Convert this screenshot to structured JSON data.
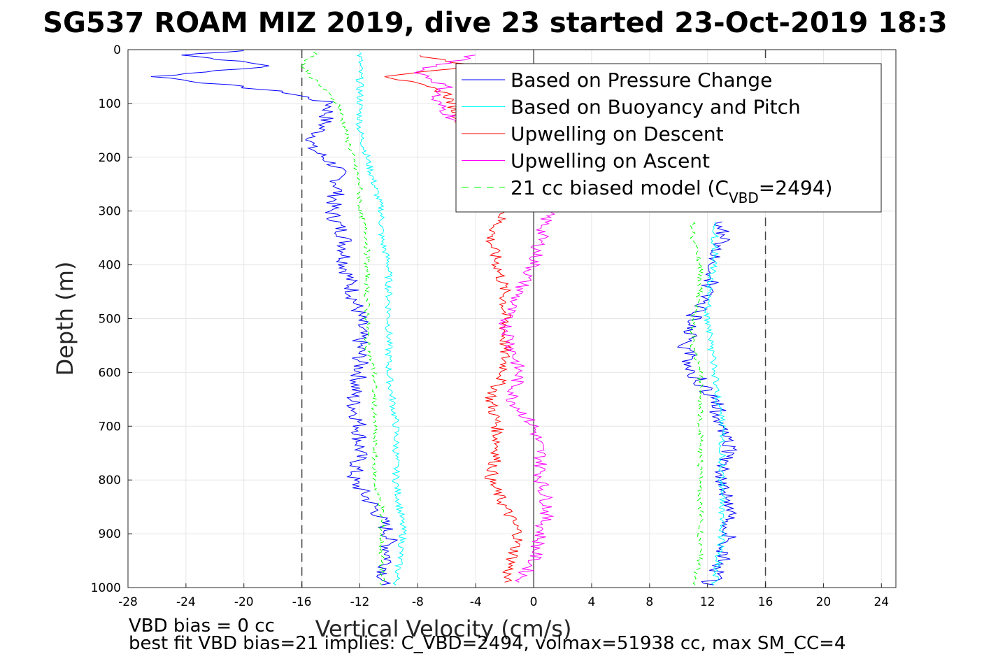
{
  "title": "SG537 ROAM MIZ 2019, dive 23 started 23-Oct-2019 18:3",
  "footer": {
    "line1": "VBD bias = 0 cc",
    "line2": "best fit VBD bias=21 implies: C_VBD=2494, volmax=51938 cc, max SM_CC=4"
  },
  "colors": {
    "pressure": "#0000ff",
    "buoyancy": "#00ffff",
    "upwelling_descent": "#ff0000",
    "upwelling_ascent": "#ff00ff",
    "biased_model": "#00ff00",
    "grid": "#e6e6e6",
    "reference": "#444444"
  },
  "chart_data": {
    "type": "line",
    "title": "SG537 ROAM MIZ 2019, dive 23 started 23-Oct-2019 18:3",
    "xlabel": "Vertical Velocity (cm/s)",
    "ylabel": "Depth (m)",
    "xlim": [
      -28,
      25
    ],
    "ylim": [
      1000,
      0
    ],
    "y_reversed": true,
    "grid": true,
    "x_ticks": [
      -28,
      -24,
      -20,
      -16,
      -12,
      -8,
      -4,
      0,
      4,
      8,
      12,
      16,
      20,
      24
    ],
    "y_ticks": [
      0,
      100,
      200,
      300,
      400,
      500,
      600,
      700,
      800,
      900,
      1000
    ],
    "reference_lines": {
      "dashed_vertical_x": [
        -16,
        16
      ],
      "solid_vertical_x": [
        0
      ]
    },
    "legend": {
      "position": "top-right",
      "entries": [
        {
          "text": "Based on Pressure Change",
          "series": "pressure",
          "style": "solid"
        },
        {
          "text": "Based on Buoyancy and Pitch",
          "series": "buoyancy",
          "style": "solid"
        },
        {
          "text": "Upwelling on Descent",
          "series": "upwelling_descent",
          "style": "solid"
        },
        {
          "text": "Upwelling on Ascent",
          "series": "upwelling_ascent",
          "style": "solid"
        },
        {
          "text": "21 cc biased model (C",
          "sub": "VBD",
          "suffix": "=2494)",
          "series": "biased_model",
          "style": "dashed"
        }
      ]
    },
    "series": [
      {
        "name": "Based on Pressure Change",
        "key": "pressure",
        "segments": [
          {
            "depth": [
              2,
              10,
              30,
              50,
              80,
              100,
              140,
              180,
              220,
              260,
              300,
              350,
              400,
              450,
              500,
              550,
              600,
              650,
              700,
              750,
              800,
              850,
              900,
              950,
              995
            ],
            "velocity": [
              -20,
              -24,
              -18,
              -26,
              -17,
              -14,
              -14.5,
              -15.5,
              -13.5,
              -13.5,
              -14,
              -13,
              -13,
              -12.5,
              -12,
              -12,
              -12,
              -12.5,
              -12,
              -12,
              -12.5,
              -11,
              -10,
              -10,
              -10.5
            ]
          },
          {
            "depth": [
              995,
              980,
              950,
              900,
              850,
              800,
              750,
              700,
              650,
              600,
              550,
              500,
              450,
              400,
              350,
              320
            ],
            "velocity": [
              12,
              12.5,
              13,
              13.5,
              13.5,
              13,
              13.5,
              13,
              12.5,
              11,
              10.5,
              11,
              12,
              12.5,
              13,
              13
            ]
          }
        ]
      },
      {
        "name": "Based on Buoyancy and Pitch",
        "key": "buoyancy",
        "segments": [
          {
            "depth": [
              5,
              20,
              50,
              100,
              150,
              200,
              250,
              300,
              350,
              400,
              450,
              500,
              600,
              700,
              800,
              900,
              995
            ],
            "velocity": [
              -12,
              -12,
              -12,
              -12,
              -12,
              -11.5,
              -11,
              -10.5,
              -10.5,
              -10,
              -10,
              -10,
              -10,
              -9.5,
              -9.5,
              -9,
              -9.5
            ]
          },
          {
            "depth": [
              995,
              900,
              800,
              700,
              600,
              500,
              450,
              400,
              350,
              320
            ],
            "velocity": [
              12.5,
              13,
              13,
              13,
              12.5,
              12,
              12,
              12.5,
              12.5,
              12.5
            ]
          }
        ]
      },
      {
        "name": "Upwelling on Descent",
        "key": "upwelling_descent",
        "segments": [
          {
            "depth": [
              10,
              30,
              50,
              80,
              300,
              350,
              400,
              450,
              500,
              550,
              600,
              650,
              700,
              750,
              800,
              850,
              900,
              950,
              990
            ],
            "velocity": [
              -8,
              -4,
              -10,
              -6,
              -2,
              -3,
              -2.5,
              -2,
              -2,
              -2,
              -2,
              -3,
              -2.5,
              -2.5,
              -3,
              -2,
              -1,
              -1.5,
              -2
            ]
          }
        ]
      },
      {
        "name": "Upwelling on Ascent",
        "key": "upwelling_ascent",
        "segments": [
          {
            "depth": [
              10,
              40,
              70,
              90,
              300,
              350,
              400,
              450,
              500,
              550,
              600,
              650,
              700,
              750,
              800,
              850,
              900,
              950,
              990
            ],
            "velocity": [
              -4,
              -8,
              -6,
              -7,
              1,
              0.5,
              0,
              -1,
              -2,
              -1.5,
              -1,
              -1.5,
              0,
              0.5,
              0.5,
              1,
              0.5,
              0,
              -1
            ]
          }
        ]
      },
      {
        "name": "21 cc biased model (CVBD=2494)",
        "key": "biased_model",
        "segments": [
          {
            "depth": [
              5,
              30,
              60,
              100,
              150,
              200,
              250,
              300,
              350,
              400,
              450,
              500,
              550,
              600,
              650,
              700,
              750,
              800,
              850,
              900,
              950,
              995
            ],
            "velocity": [
              -15,
              -16,
              -15,
              -13.5,
              -13,
              -12.5,
              -12,
              -12,
              -11.5,
              -11.5,
              -11.5,
              -11.5,
              -11.5,
              -11,
              -11,
              -11,
              -11,
              -11,
              -10.5,
              -10.5,
              -10.5,
              -10.5
            ]
          },
          {
            "depth": [
              995,
              950,
              900,
              850,
              800,
              750,
              700,
              650,
              600,
              550,
              500,
              450,
              400,
              350,
              320
            ],
            "velocity": [
              11,
              11.5,
              11.5,
              11.5,
              11.5,
              11.5,
              11.5,
              11.5,
              11.5,
              11,
              11,
              11.5,
              11.5,
              11,
              11
            ]
          }
        ]
      }
    ]
  }
}
